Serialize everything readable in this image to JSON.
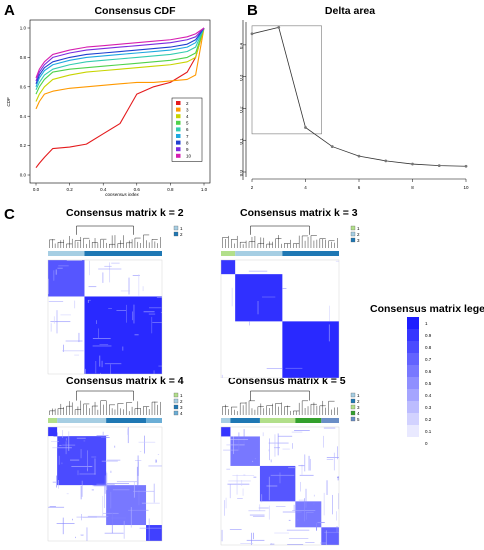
{
  "panels": {
    "a": "A",
    "b": "B",
    "c": "C"
  },
  "chart_data": [
    {
      "type": "line",
      "title": "Consensus CDF",
      "xlabel": "consensus index",
      "ylabel": "CDF",
      "xlim": [
        0,
        1
      ],
      "ylim": [
        0,
        1
      ],
      "x_ticks": [
        "0.0",
        "0.2",
        "0.4",
        "0.6",
        "0.8",
        "1.0"
      ],
      "y_ticks": [
        "0.0",
        "0.2",
        "0.4",
        "0.6",
        "0.8",
        "1.0"
      ],
      "legend_position": "bottom-right",
      "x": [
        0.0,
        0.02,
        0.05,
        0.1,
        0.2,
        0.3,
        0.4,
        0.5,
        0.6,
        0.7,
        0.8,
        0.9,
        0.95,
        1.0
      ],
      "series": [
        {
          "name": "2",
          "color": "#e41a1c",
          "values": [
            0.05,
            0.08,
            0.12,
            0.18,
            0.19,
            0.21,
            0.28,
            0.35,
            0.55,
            0.6,
            0.63,
            0.7,
            0.8,
            1.0
          ]
        },
        {
          "name": "3",
          "color": "#ff9900",
          "values": [
            0.45,
            0.5,
            0.55,
            0.57,
            0.59,
            0.6,
            0.61,
            0.62,
            0.63,
            0.63,
            0.64,
            0.65,
            0.68,
            1.0
          ]
        },
        {
          "name": "4",
          "color": "#c8d400",
          "values": [
            0.5,
            0.55,
            0.6,
            0.65,
            0.68,
            0.7,
            0.71,
            0.72,
            0.73,
            0.74,
            0.75,
            0.77,
            0.8,
            1.0
          ]
        },
        {
          "name": "5",
          "color": "#4fd24a",
          "values": [
            0.55,
            0.6,
            0.65,
            0.7,
            0.72,
            0.73,
            0.74,
            0.75,
            0.76,
            0.77,
            0.78,
            0.8,
            0.83,
            1.0
          ]
        },
        {
          "name": "6",
          "color": "#33ccb0",
          "values": [
            0.58,
            0.63,
            0.68,
            0.72,
            0.75,
            0.77,
            0.78,
            0.79,
            0.8,
            0.81,
            0.82,
            0.84,
            0.87,
            1.0
          ]
        },
        {
          "name": "7",
          "color": "#1fa8e0",
          "values": [
            0.6,
            0.66,
            0.71,
            0.75,
            0.78,
            0.8,
            0.81,
            0.82,
            0.83,
            0.84,
            0.85,
            0.87,
            0.9,
            1.0
          ]
        },
        {
          "name": "8",
          "color": "#1f3fd0",
          "values": [
            0.62,
            0.68,
            0.73,
            0.77,
            0.8,
            0.82,
            0.83,
            0.84,
            0.85,
            0.86,
            0.87,
            0.89,
            0.92,
            1.0
          ]
        },
        {
          "name": "9",
          "color": "#7a2be0",
          "values": [
            0.64,
            0.7,
            0.75,
            0.8,
            0.83,
            0.85,
            0.86,
            0.87,
            0.88,
            0.89,
            0.9,
            0.92,
            0.94,
            1.0
          ]
        },
        {
          "name": "10",
          "color": "#d61fb0",
          "values": [
            0.66,
            0.72,
            0.77,
            0.82,
            0.85,
            0.87,
            0.88,
            0.89,
            0.9,
            0.91,
            0.92,
            0.94,
            0.96,
            1.0
          ]
        }
      ]
    },
    {
      "type": "line",
      "title": "Delta area",
      "xlabel": "",
      "ylabel": "",
      "xlim": [
        2,
        10
      ],
      "ylim": [
        0,
        0.45
      ],
      "x_ticks": [
        "2",
        "4",
        "6",
        "8",
        "10"
      ],
      "y_ticks": [
        "0.0",
        "0.1",
        "0.2",
        "0.3",
        "0.4"
      ],
      "x": [
        2,
        3,
        4,
        5,
        6,
        7,
        8,
        9,
        10
      ],
      "values": [
        0.435,
        0.455,
        0.14,
        0.08,
        0.05,
        0.035,
        0.025,
        0.02,
        0.018
      ],
      "annotation_box": {
        "x": [
          2,
          4.6
        ],
        "y": [
          0.12,
          0.46
        ]
      }
    },
    {
      "type": "heatmap",
      "title": "Consensus matrix k = 2",
      "legend": [
        "1",
        "2"
      ],
      "cluster_colors": [
        "#a6cee3",
        "#1f78b4"
      ],
      "cluster_fractions": [
        0.32,
        0.68
      ]
    },
    {
      "type": "heatmap",
      "title": "Consensus matrix k = 3",
      "legend": [
        "1",
        "2",
        "3"
      ],
      "cluster_colors": [
        "#b2df8a",
        "#a6cee3",
        "#1f78b4"
      ],
      "cluster_fractions": [
        0.12,
        0.4,
        0.48
      ]
    },
    {
      "type": "heatmap",
      "title": "Consensus matrix k = 4",
      "legend": [
        "1",
        "2",
        "3",
        "4"
      ],
      "cluster_colors": [
        "#b2df8a",
        "#a6cee3",
        "#1f78b4",
        "#6baed6"
      ],
      "cluster_fractions": [
        0.08,
        0.43,
        0.35,
        0.14
      ]
    },
    {
      "type": "heatmap",
      "title": "Consensus matrix k = 5",
      "legend": [
        "1",
        "2",
        "3",
        "4",
        "5"
      ],
      "cluster_colors": [
        "#a6cee3",
        "#1f78b4",
        "#b2df8a",
        "#33a02c",
        "#6a8ec6"
      ],
      "cluster_fractions": [
        0.08,
        0.25,
        0.3,
        0.22,
        0.15
      ]
    },
    {
      "type": "heatmap",
      "title": "Consensus matrix legend",
      "scale_labels": [
        "1",
        "0.9",
        "0.8",
        "0.7",
        "0.6",
        "0.5",
        "0.4",
        "0.3",
        "0.2",
        "0.1",
        "0"
      ]
    }
  ]
}
